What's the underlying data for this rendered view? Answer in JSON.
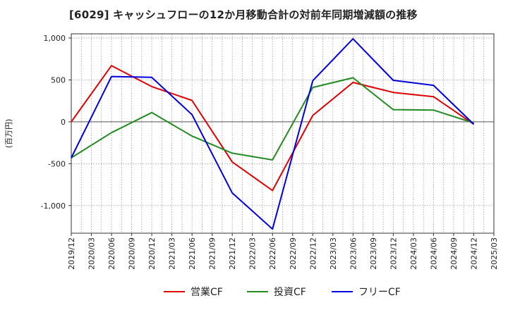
{
  "chart_data": {
    "type": "line",
    "title": "[6029]  キャッシュフローの12か月移動合計の対前年同期増減額の推移",
    "ylabel": "(百万円)",
    "xlabel": "",
    "x": [
      "2019/12",
      "2020/03",
      "2020/06",
      "2020/09",
      "2020/12",
      "2021/03",
      "2021/06",
      "2021/09",
      "2021/12",
      "2022/03",
      "2022/06",
      "2022/09",
      "2022/12",
      "2023/03",
      "2023/06",
      "2023/09",
      "2023/12",
      "2024/03",
      "2024/06",
      "2024/09",
      "2024/12",
      "2025/03"
    ],
    "ylim": [
      -1330,
      1050
    ],
    "yticks": [
      1000,
      500,
      0,
      -500,
      -1000
    ],
    "ytick_labels": [
      "1,000",
      "500",
      "0",
      "-500",
      "-1,000"
    ],
    "grid": true,
    "legend_position": "bottom-center",
    "series": [
      {
        "name": "営業CF",
        "color": "#e00000",
        "points": [
          [
            "2019/12",
            0
          ],
          [
            "2020/06",
            670
          ],
          [
            "2020/12",
            420
          ],
          [
            "2021/06",
            255
          ],
          [
            "2021/12",
            -480
          ],
          [
            "2022/06",
            -820
          ],
          [
            "2022/12",
            75
          ],
          [
            "2023/06",
            470
          ],
          [
            "2023/12",
            350
          ],
          [
            "2024/06",
            300
          ],
          [
            "2024/12",
            -30
          ]
        ]
      },
      {
        "name": "投資CF",
        "color": "#228b22",
        "points": [
          [
            "2019/12",
            -430
          ],
          [
            "2020/06",
            -130
          ],
          [
            "2020/12",
            110
          ],
          [
            "2021/06",
            -170
          ],
          [
            "2021/12",
            -375
          ],
          [
            "2022/06",
            -455
          ],
          [
            "2022/12",
            410
          ],
          [
            "2023/06",
            525
          ],
          [
            "2023/12",
            145
          ],
          [
            "2024/06",
            140
          ],
          [
            "2024/12",
            -15
          ]
        ]
      },
      {
        "name": "フリーCF",
        "color": "#0000e0",
        "points": [
          [
            "2019/12",
            -430
          ],
          [
            "2020/06",
            540
          ],
          [
            "2020/12",
            530
          ],
          [
            "2021/06",
            85
          ],
          [
            "2021/12",
            -850
          ],
          [
            "2022/06",
            -1280
          ],
          [
            "2022/12",
            490
          ],
          [
            "2023/06",
            990
          ],
          [
            "2023/12",
            495
          ],
          [
            "2024/06",
            435
          ],
          [
            "2024/12",
            -30
          ]
        ]
      }
    ]
  }
}
